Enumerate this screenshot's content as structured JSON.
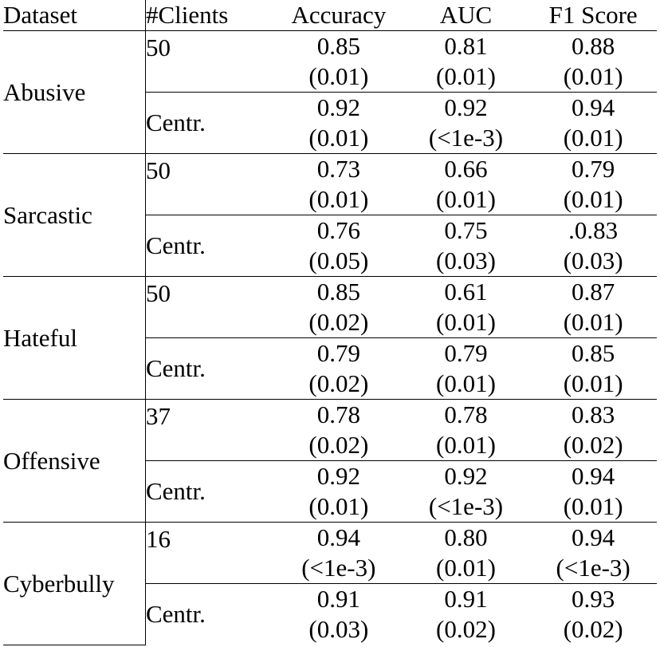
{
  "headers": {
    "dataset": "Dataset",
    "clients": "#Clients",
    "accuracy": "Accuracy",
    "auc": "AUC",
    "f1": "F1 Score"
  },
  "rows": [
    {
      "dataset": "Abusive",
      "fed": {
        "clients": "50",
        "accuracy": "0.85",
        "accuracy_sd": "(0.01)",
        "auc": "0.81",
        "auc_sd": "(0.01)",
        "f1": "0.88",
        "f1_sd": "(0.01)"
      },
      "centr": {
        "clients": "Centr.",
        "accuracy": "0.92",
        "accuracy_sd": "(0.01)",
        "auc": "0.92",
        "auc_sd": "(<1e-3)",
        "f1": "0.94",
        "f1_sd": "(0.01)"
      }
    },
    {
      "dataset": "Sarcastic",
      "fed": {
        "clients": "50",
        "accuracy": "0.73",
        "accuracy_sd": "(0.01)",
        "auc": "0.66",
        "auc_sd": "(0.01)",
        "f1": "0.79",
        "f1_sd": "(0.01)"
      },
      "centr": {
        "clients": "Centr.",
        "accuracy": "0.76",
        "accuracy_sd": "(0.05)",
        "auc": "0.75",
        "auc_sd": "(0.03)",
        "f1": ".0.83",
        "f1_sd": "(0.03)"
      }
    },
    {
      "dataset": "Hateful",
      "fed": {
        "clients": "50",
        "accuracy": "0.85",
        "accuracy_sd": "(0.02)",
        "auc": "0.61",
        "auc_sd": "(0.01)",
        "f1": "0.87",
        "f1_sd": "(0.01)"
      },
      "centr": {
        "clients": "Centr.",
        "accuracy": "0.79",
        "accuracy_sd": "(0.02)",
        "auc": "0.79",
        "auc_sd": "(0.01)",
        "f1": "0.85",
        "f1_sd": "(0.01)"
      }
    },
    {
      "dataset": "Offensive",
      "fed": {
        "clients": "37",
        "accuracy": "0.78",
        "accuracy_sd": "(0.02)",
        "auc": "0.78",
        "auc_sd": "(0.01)",
        "f1": "0.83",
        "f1_sd": "(0.02)"
      },
      "centr": {
        "clients": "Centr.",
        "accuracy": "0.92",
        "accuracy_sd": "(0.01)",
        "auc": "0.92",
        "auc_sd": "(<1e-3)",
        "f1": "0.94",
        "f1_sd": "(0.01)"
      }
    },
    {
      "dataset": "Cyberbully",
      "fed": {
        "clients": "16",
        "accuracy": "0.94",
        "accuracy_sd": "(<1e-3)",
        "auc": "0.80",
        "auc_sd": "(0.01)",
        "f1": "0.94",
        "f1_sd": "(<1e-3)"
      },
      "centr": {
        "clients": "Centr.",
        "accuracy": "0.91",
        "accuracy_sd": "(0.03)",
        "auc": "0.91",
        "auc_sd": "(0.02)",
        "f1": "0.93",
        "f1_sd": "(0.02)"
      }
    }
  ]
}
